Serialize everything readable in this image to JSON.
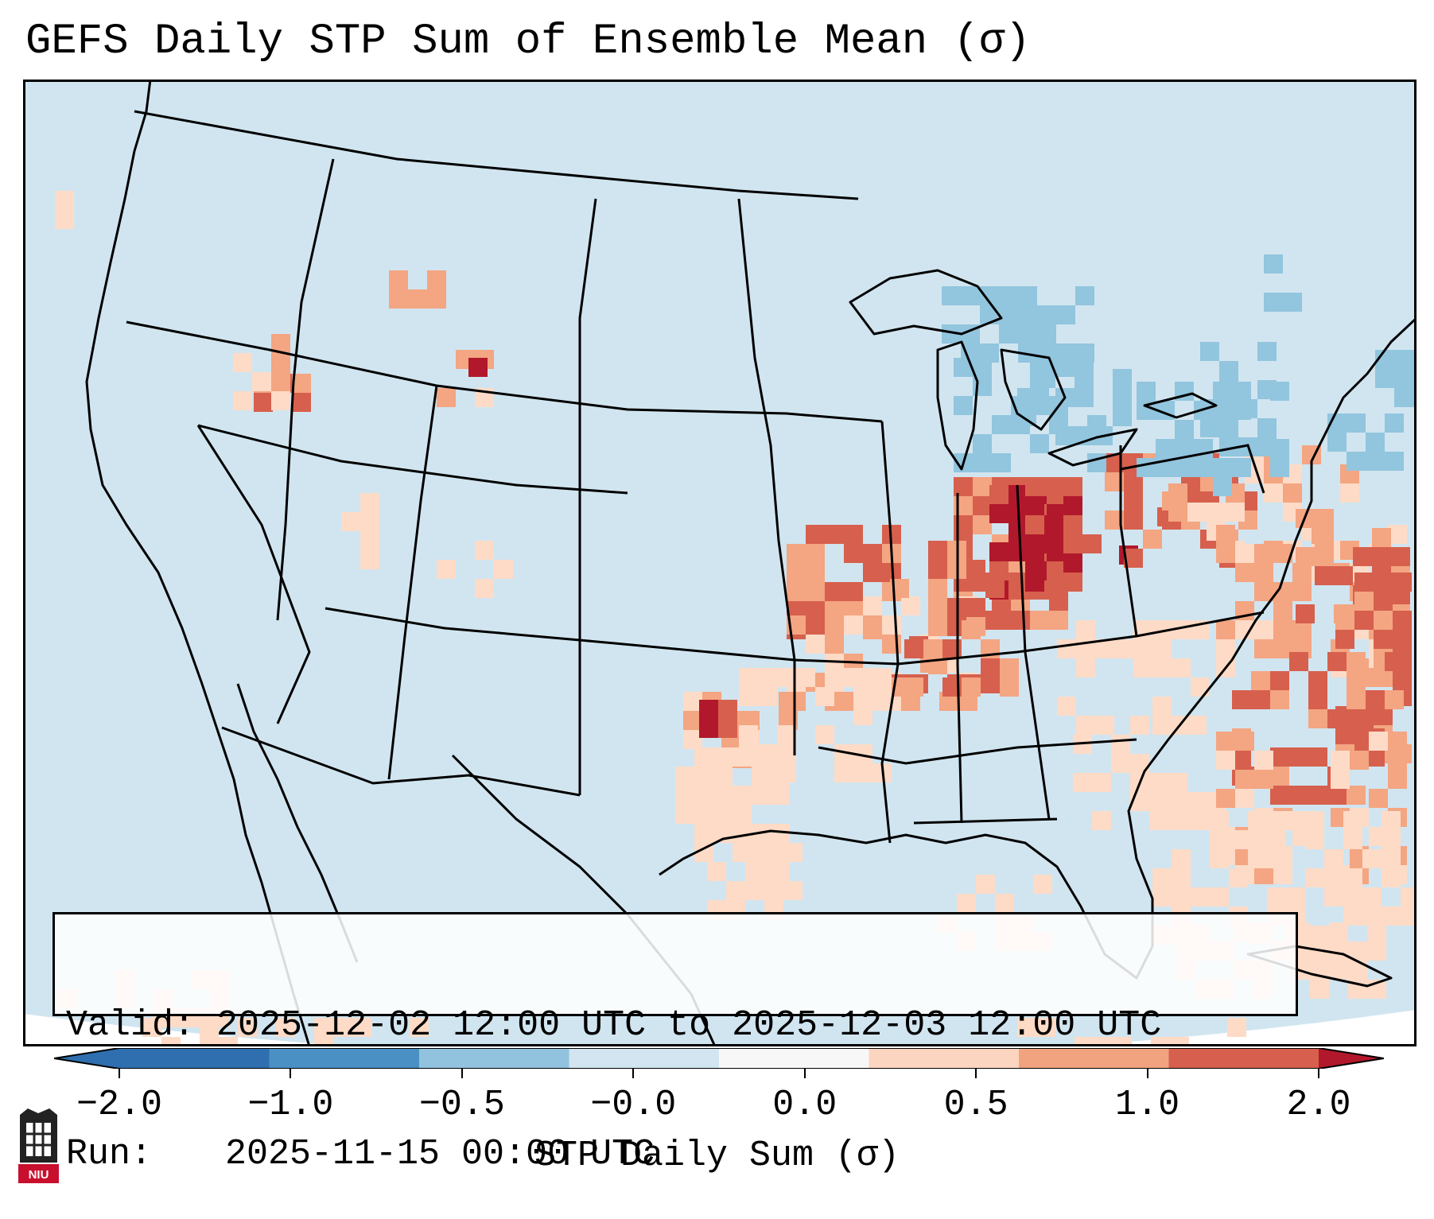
{
  "header": {
    "title": "GEFS Daily STP Sum of Ensemble Mean (σ)"
  },
  "info": {
    "valid_label": "Valid:",
    "valid_value": "2025-12-02 12:00 UTC to 2025-12-03 12:00 UTC",
    "run_label": "Run:",
    "run_value": "2025-11-15 00:00 UTC"
  },
  "colorbar": {
    "ticks": [
      "−2.0",
      "−1.0",
      "−0.5",
      "−0.0",
      "0.0",
      "0.5",
      "1.0",
      "2.0"
    ],
    "colors": [
      "#2f6fb0",
      "#4a90c4",
      "#91c3de",
      "#d2e5f0",
      "#f7f7f7",
      "#fcd5c0",
      "#f1a37f",
      "#d6604d",
      "#b2182b"
    ],
    "label": "STP Daily Sum (σ)"
  },
  "map": {
    "background_color": "#d1e5f0",
    "feature_colors": {
      "light": "#fddbc7",
      "medium": "#f4a582",
      "strong": "#d6604d",
      "extreme": "#b2182b",
      "cool": "#92c5de",
      "cooler": "#4393c3"
    },
    "features": [
      {
        "name": "ohio-valley-maximum",
        "level": "extreme"
      },
      {
        "name": "mid-mississippi-band",
        "level": "strong"
      },
      {
        "name": "atlantic-warm-band",
        "level": "strong"
      },
      {
        "name": "great-lakes-negative",
        "level": "cool"
      },
      {
        "name": "northeast-negative",
        "level": "cool"
      }
    ]
  },
  "logo": {
    "text": "NIU"
  }
}
